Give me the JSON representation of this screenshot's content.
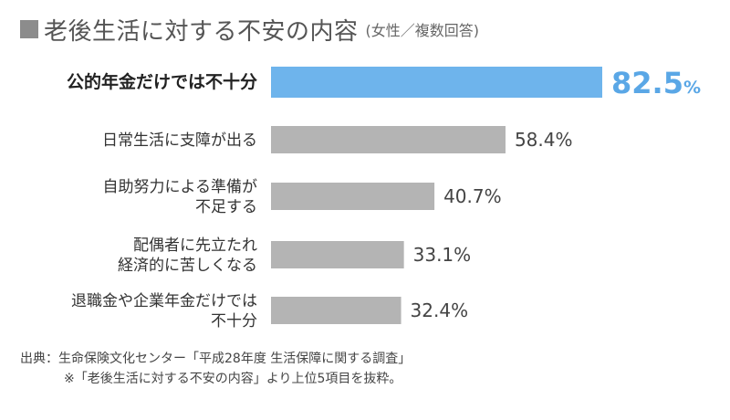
{
  "title": {
    "main": "老後生活に対する不安の内容",
    "sub": "(女性／複数回答)"
  },
  "chart_data": {
    "type": "bar",
    "orientation": "horizontal",
    "categories": [
      [
        "公的年金だけでは不十分"
      ],
      [
        "日常生活に支障が出る"
      ],
      [
        "自助努力による準備が",
        "不足する"
      ],
      [
        "配偶者に先立たれ",
        "経済的に苦しくなる"
      ],
      [
        "退職金や企業年金だけでは",
        "不十分"
      ]
    ],
    "values": [
      82.5,
      58.4,
      40.7,
      33.1,
      32.4
    ],
    "value_labels": [
      "82.5",
      "58.4%",
      "40.7%",
      "33.1%",
      "32.4%"
    ],
    "unit": "%",
    "xlim": [
      0,
      100
    ],
    "highlight_index": 0,
    "colors": {
      "highlight": "#6eb4ec",
      "default": "#b4b4b4",
      "highlight_text": "#5aa7e6"
    },
    "grid": false,
    "legend": "none"
  },
  "footer": {
    "source": "出典：生命保険文化センター「平成28年度 生活保障に関する調査」",
    "note": "※「老後生活に対する不安の内容」より上位5項目を抜粋。"
  }
}
